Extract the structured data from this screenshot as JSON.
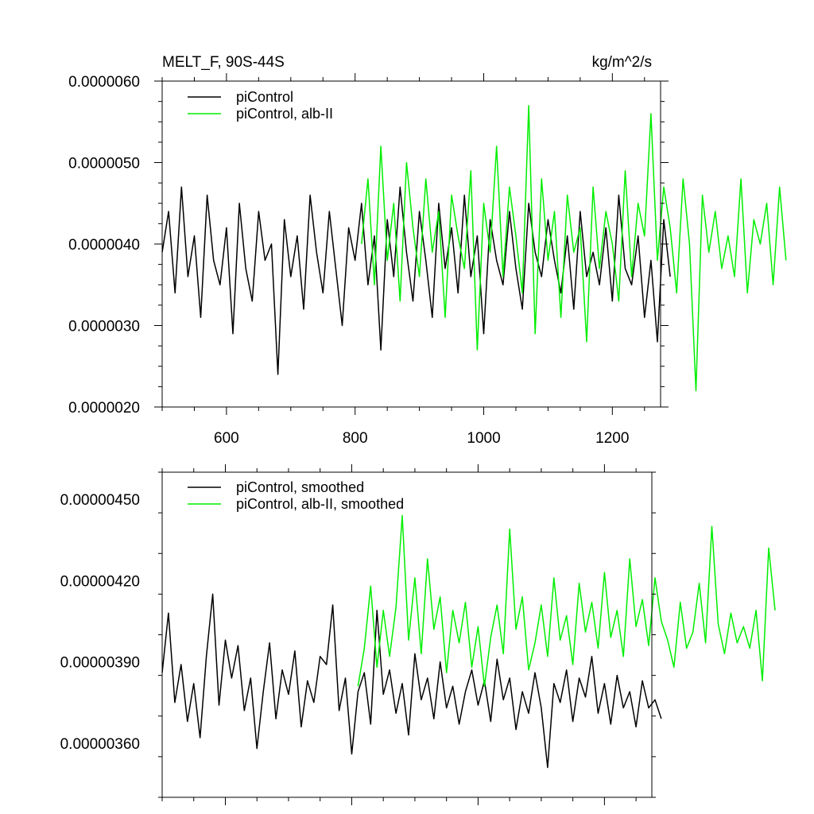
{
  "colors": {
    "control": "#000000",
    "albii": "#00ee00",
    "frame": "#000000"
  },
  "chart_data": [
    {
      "type": "line",
      "title": "MELT_F, 90S-44S",
      "units": "kg/m^2/s",
      "xlabel": "",
      "ylabel": "",
      "xlim": [
        500,
        1275
      ],
      "ylim": [
        2e-06,
        6e-06
      ],
      "x_ticks": [
        600,
        800,
        1000,
        1200
      ],
      "x_tick_labels": [
        "600",
        "800",
        "1000",
        "1200"
      ],
      "y_ticks": [
        2e-06,
        3e-06,
        4e-06,
        5e-06,
        6e-06
      ],
      "y_tick_labels": [
        "0.0000020",
        "0.0000030",
        "0.0000040",
        "0.0000050",
        "0.0000060"
      ],
      "legend_position": "top-left",
      "series": [
        {
          "name": "piControl",
          "color": "#000000",
          "x_start": 500,
          "x_step": 10,
          "values": [
            3.9e-06,
            4.4e-06,
            3.4e-06,
            4.7e-06,
            3.6e-06,
            4.1e-06,
            3.1e-06,
            4.6e-06,
            3.8e-06,
            3.5e-06,
            4.2e-06,
            2.9e-06,
            4.5e-06,
            3.7e-06,
            3.3e-06,
            4.4e-06,
            3.8e-06,
            4e-06,
            2.4e-06,
            4.3e-06,
            3.6e-06,
            4.1e-06,
            3.2e-06,
            4.6e-06,
            3.9e-06,
            3.4e-06,
            4.4e-06,
            3.7e-06,
            3e-06,
            4.2e-06,
            3.8e-06,
            4.5e-06,
            3.5e-06,
            4.1e-06,
            2.7e-06,
            4.3e-06,
            3.6e-06,
            4.7e-06,
            3.9e-06,
            3.3e-06,
            4.4e-06,
            3.8e-06,
            3.1e-06,
            4.5e-06,
            3.7e-06,
            4.2e-06,
            3.4e-06,
            4.6e-06,
            3.6e-06,
            4.1e-06,
            2.9e-06,
            4.3e-06,
            3.8e-06,
            3.5e-06,
            4.4e-06,
            3.7e-06,
            3.2e-06,
            4.5e-06,
            3.9e-06,
            3.6e-06,
            4.3e-06,
            3.8e-06,
            3.4e-06,
            4.1e-06,
            3.2e-06,
            4.4e-06,
            3.6e-06,
            3.9e-06,
            3.5e-06,
            4.2e-06,
            3.3e-06,
            4.6e-06,
            3.7e-06,
            3.5e-06,
            4.1e-06,
            3.1e-06,
            3.8e-06,
            2.8e-06,
            4.3e-06,
            3.6e-06
          ]
        },
        {
          "name": "piControl, alb-II",
          "color": "#00ee00",
          "x_start": 810,
          "x_step": 10,
          "values": [
            4e-06,
            4.8e-06,
            3.5e-06,
            5.2e-06,
            3.8e-06,
            4.5e-06,
            3.3e-06,
            5e-06,
            4.2e-06,
            3.6e-06,
            4.8e-06,
            3.9e-06,
            4.4e-06,
            3.1e-06,
            4.6e-06,
            4.1e-06,
            3.7e-06,
            4.9e-06,
            2.7e-06,
            4.5e-06,
            3.9e-06,
            5.2e-06,
            3.6e-06,
            4.7e-06,
            4.1e-06,
            3.4e-06,
            5.7e-06,
            2.9e-06,
            4.8e-06,
            3.8e-06,
            4.4e-06,
            3.1e-06,
            4.6e-06,
            3.9e-06,
            4.2e-06,
            2.8e-06,
            4.7e-06,
            3.7e-06,
            4.4e-06,
            4e-06,
            3.3e-06,
            4.9e-06,
            3.6e-06,
            4.5e-06,
            4.1e-06,
            5.6e-06,
            3.8e-06,
            4.7e-06,
            4.2e-06,
            3.4e-06,
            4.8e-06,
            4e-06,
            2.2e-06,
            4.6e-06,
            3.9e-06,
            4.4e-06,
            3.7e-06,
            4.1e-06,
            3.6e-06,
            4.8e-06,
            3.4e-06,
            4.3e-06,
            4e-06,
            4.5e-06,
            3.5e-06,
            4.7e-06,
            3.8e-06
          ]
        }
      ]
    },
    {
      "type": "line",
      "title": "",
      "xlabel": "",
      "ylabel": "",
      "xlim": [
        500,
        1275
      ],
      "ylim": [
        3.4e-06,
        4.6e-06
      ],
      "x_ticks": [
        600,
        800,
        1000,
        1200
      ],
      "y_ticks": [
        3.6e-06,
        3.9e-06,
        4.2e-06,
        4.5e-06
      ],
      "y_tick_labels": [
        "0.00000360",
        "0.00000390",
        "0.00000420",
        "0.00000450"
      ],
      "legend_position": "top-left",
      "series": [
        {
          "name": "piControl, smoothed",
          "color": "#000000",
          "x_start": 500,
          "x_step": 10,
          "values": [
            3.86e-06,
            4.08e-06,
            3.75e-06,
            3.89e-06,
            3.68e-06,
            3.82e-06,
            3.62e-06,
            3.92e-06,
            4.15e-06,
            3.74e-06,
            3.98e-06,
            3.84e-06,
            3.96e-06,
            3.72e-06,
            3.84e-06,
            3.58e-06,
            3.79e-06,
            3.97e-06,
            3.69e-06,
            3.87e-06,
            3.78e-06,
            3.94e-06,
            3.66e-06,
            3.83e-06,
            3.75e-06,
            3.92e-06,
            3.89e-06,
            4.11e-06,
            3.72e-06,
            3.84e-06,
            3.56e-06,
            3.79e-06,
            3.86e-06,
            3.67e-06,
            4.09e-06,
            3.78e-06,
            3.87e-06,
            3.71e-06,
            3.82e-06,
            3.63e-06,
            3.93e-06,
            3.76e-06,
            3.84e-06,
            3.69e-06,
            3.9e-06,
            3.73e-06,
            3.81e-06,
            3.67e-06,
            3.79e-06,
            3.87e-06,
            3.74e-06,
            3.83e-06,
            3.68e-06,
            3.91e-06,
            3.76e-06,
            3.84e-06,
            3.65e-06,
            3.79e-06,
            3.71e-06,
            3.86e-06,
            3.73e-06,
            3.51e-06,
            3.82e-06,
            3.75e-06,
            3.87e-06,
            3.68e-06,
            3.84e-06,
            3.77e-06,
            3.92e-06,
            3.71e-06,
            3.82e-06,
            3.67e-06,
            3.85e-06,
            3.73e-06,
            3.79e-06,
            3.66e-06,
            3.83e-06,
            3.73e-06,
            3.76e-06,
            3.69e-06
          ]
        },
        {
          "name": "piControl, alb-II, smoothed",
          "color": "#00ee00",
          "x_start": 810,
          "x_step": 10,
          "values": [
            3.81e-06,
            3.95e-06,
            4.18e-06,
            3.88e-06,
            4.09e-06,
            3.92e-06,
            4.1e-06,
            4.44e-06,
            3.98e-06,
            4.21e-06,
            3.93e-06,
            4.28e-06,
            4.02e-06,
            4.14e-06,
            3.86e-06,
            4.09e-06,
            3.97e-06,
            4.12e-06,
            3.88e-06,
            4.03e-06,
            3.81e-06,
            3.99e-06,
            4.11e-06,
            3.93e-06,
            4.39e-06,
            4.02e-06,
            4.14e-06,
            3.87e-06,
            3.97e-06,
            4.11e-06,
            3.92e-06,
            4.21e-06,
            3.98e-06,
            4.07e-06,
            3.89e-06,
            4.19e-06,
            4.01e-06,
            4.12e-06,
            3.95e-06,
            4.23e-06,
            3.99e-06,
            4.09e-06,
            3.92e-06,
            4.28e-06,
            4.03e-06,
            4.13e-06,
            3.96e-06,
            4.21e-06,
            4.05e-06,
            3.98e-06,
            3.88e-06,
            4.12e-06,
            3.95e-06,
            4.01e-06,
            4.19e-06,
            3.97e-06,
            4.4e-06,
            4.04e-06,
            3.93e-06,
            4.08e-06,
            3.97e-06,
            4.03e-06,
            3.95e-06,
            4.09e-06,
            3.83e-06,
            4.32e-06,
            4.09e-06
          ]
        }
      ]
    }
  ]
}
